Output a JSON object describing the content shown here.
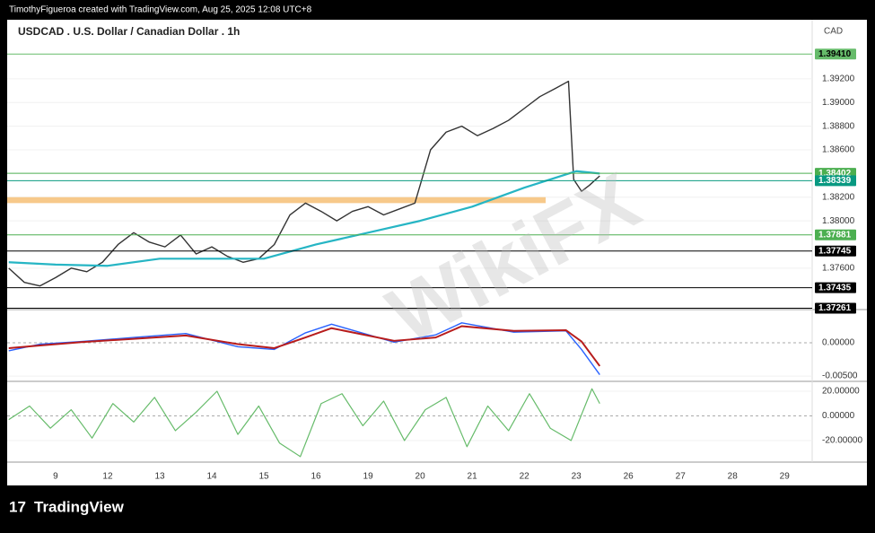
{
  "header": "TimothyFigueroa created with TradingView.com, Aug 25, 2025 12:08 UTC+8",
  "footer": "TradingView",
  "watermark": "WikiFX",
  "chart_data": [
    {
      "type": "line",
      "title": "USDCAD . U.S. Dollar / Canadian Dollar . 1h",
      "axis_unit": "CAD",
      "xlim": [
        -0.93,
        14.53
      ],
      "ylim": [
        1.3725,
        1.397
      ],
      "yticks": [
        {
          "value": 1.392,
          "label": "1.39200"
        },
        {
          "value": 1.39,
          "label": "1.39000"
        },
        {
          "value": 1.388,
          "label": "1.38800"
        },
        {
          "value": 1.386,
          "label": "1.38600"
        },
        {
          "value": 1.382,
          "label": "1.38200"
        },
        {
          "value": 1.38,
          "label": "1.38000"
        },
        {
          "value": 1.376,
          "label": "1.37600"
        }
      ],
      "zone": [
        1.3815,
        1.382
      ],
      "zone_color": "#f7c98a",
      "levels": [
        {
          "value": 1.3941,
          "label": "1.39410",
          "color": "#66bb6a",
          "text_color": "#000000"
        },
        {
          "value": 1.38402,
          "label": "1.38402",
          "color": "#4caf50",
          "text_color": "#ffffff"
        },
        {
          "value": 1.38339,
          "label": "1.38339",
          "color": "#089981",
          "text_color": "#ffffff"
        },
        {
          "value": 1.37881,
          "label": "1.37881",
          "color": "#4caf50",
          "text_color": "#ffffff"
        },
        {
          "value": 1.37745,
          "label": "1.37745",
          "color": "#000000",
          "text_color": "#ffffff"
        },
        {
          "value": 1.37435,
          "label": "1.37435",
          "color": "#000000",
          "text_color": "#ffffff"
        },
        {
          "value": 1.37261,
          "label": "1.37261",
          "color": "#000000",
          "text_color": "#ffffff"
        }
      ],
      "series": [
        {
          "color": "#333333",
          "width": 1.4,
          "x": [
            -0.9,
            -0.6,
            -0.3,
            0,
            0.3,
            0.6,
            0.9,
            1.2,
            1.5,
            1.8,
            2.1,
            2.4,
            2.7,
            3.0,
            3.3,
            3.6,
            3.9,
            4.2,
            4.5,
            4.8,
            5.1,
            5.4,
            5.7,
            6.0,
            6.3,
            6.6,
            6.9,
            7.2,
            7.5,
            7.8,
            8.1,
            8.4,
            8.7,
            9.0,
            9.3,
            9.6,
            9.85,
            9.95,
            10.1,
            10.25,
            10.45
          ],
          "values": [
            1.376,
            1.3748,
            1.3745,
            1.3752,
            1.376,
            1.3757,
            1.3765,
            1.378,
            1.379,
            1.3782,
            1.3778,
            1.3788,
            1.3772,
            1.3778,
            1.377,
            1.3765,
            1.3768,
            1.378,
            1.3805,
            1.3815,
            1.3808,
            1.38,
            1.3808,
            1.3812,
            1.3805,
            1.381,
            1.3815,
            1.386,
            1.3875,
            1.388,
            1.3872,
            1.3878,
            1.3885,
            1.3895,
            1.3905,
            1.3912,
            1.3918,
            1.3835,
            1.3825,
            1.383,
            1.3838
          ]
        },
        {
          "color": "#26b5c4",
          "width": 2.2,
          "x": [
            -0.9,
            0,
            1,
            2,
            3,
            4,
            5,
            6,
            7,
            8,
            9,
            10,
            10.45
          ],
          "values": [
            1.3765,
            1.3763,
            1.3762,
            1.3768,
            1.3768,
            1.3768,
            1.378,
            1.379,
            1.38,
            1.3812,
            1.3828,
            1.3842,
            1.384
          ]
        }
      ]
    },
    {
      "type": "line",
      "xlim": [
        -0.93,
        14.53
      ],
      "ylim": [
        -0.0058,
        0.005
      ],
      "yticks": [
        {
          "value": 0,
          "label": "0.00000"
        },
        {
          "value": -0.005,
          "label": "-0.00500"
        }
      ],
      "series": [
        {
          "color": "#2962ff",
          "width": 1.4,
          "x": [
            -0.9,
            -0.3,
            0.5,
            1.5,
            2.5,
            3.5,
            4.2,
            4.8,
            5.3,
            6.5,
            7.3,
            7.8,
            8.8,
            9.8,
            10.1,
            10.45
          ],
          "values": [
            -0.0012,
            -0.0002,
            0.0002,
            0.0008,
            0.0014,
            -0.0006,
            -0.001,
            0.0015,
            0.0028,
            0.0001,
            0.0012,
            0.003,
            0.0016,
            0.0018,
            -0.001,
            -0.0048
          ]
        },
        {
          "color": "#b71c1c",
          "width": 2,
          "x": [
            -0.9,
            -0.3,
            0.5,
            1.5,
            2.5,
            3.5,
            4.2,
            4.8,
            5.3,
            6.5,
            7.3,
            7.8,
            8.8,
            9.8,
            10.1,
            10.45
          ],
          "values": [
            -0.0008,
            -0.0004,
            0.0001,
            0.0006,
            0.0011,
            -0.0002,
            -0.0008,
            0.0008,
            0.0022,
            0.0003,
            0.0008,
            0.0025,
            0.0018,
            0.0019,
            0.0002,
            -0.0035
          ]
        }
      ]
    },
    {
      "type": "line",
      "xlim": [
        -0.93,
        14.53
      ],
      "ylim": [
        -37.5,
        28
      ],
      "yticks": [
        {
          "value": 20,
          "label": "20.00000"
        },
        {
          "value": 0,
          "label": "0.00000"
        },
        {
          "value": -20,
          "label": "-20.00000"
        }
      ],
      "xticks": [
        {
          "value": 0,
          "label": "9"
        },
        {
          "value": 1,
          "label": "12"
        },
        {
          "value": 2,
          "label": "13"
        },
        {
          "value": 3,
          "label": "14"
        },
        {
          "value": 4,
          "label": "15"
        },
        {
          "value": 5,
          "label": "16"
        },
        {
          "value": 6,
          "label": "19"
        },
        {
          "value": 7,
          "label": "20"
        },
        {
          "value": 8,
          "label": "21"
        },
        {
          "value": 9,
          "label": "22"
        },
        {
          "value": 10,
          "label": "23"
        },
        {
          "value": 11,
          "label": "26"
        },
        {
          "value": 12,
          "label": "27"
        },
        {
          "value": 13,
          "label": "28"
        },
        {
          "value": 14,
          "label": "29"
        }
      ],
      "series": [
        {
          "color": "#66bb6a",
          "width": 1.2,
          "x": [
            -0.9,
            -0.5,
            -0.1,
            0.3,
            0.7,
            1.1,
            1.5,
            1.9,
            2.3,
            2.7,
            3.1,
            3.5,
            3.9,
            4.3,
            4.7,
            5.1,
            5.5,
            5.9,
            6.3,
            6.7,
            7.1,
            7.5,
            7.9,
            8.3,
            8.7,
            9.1,
            9.5,
            9.9,
            10.3,
            10.45
          ],
          "values": [
            -3,
            8,
            -10,
            5,
            -18,
            10,
            -5,
            15,
            -12,
            3,
            20,
            -15,
            8,
            -22,
            -33,
            10,
            18,
            -8,
            12,
            -20,
            5,
            15,
            -25,
            8,
            -12,
            18,
            -10,
            -20,
            22,
            10
          ]
        }
      ]
    }
  ]
}
